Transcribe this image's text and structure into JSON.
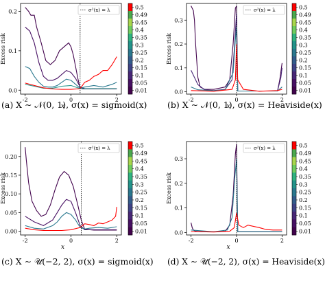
{
  "colorbar_ticks": [
    "0.5",
    "0.49",
    "0.45",
    "0.4",
    "0.35",
    "0.3",
    "0.25",
    "0.2",
    "0.15",
    "0.1",
    "0.05",
    "0.01"
  ],
  "colorbar_colors": [
    "#ff0000",
    "#4ba84e",
    "#a8d64c",
    "#6fce5f",
    "#2fb380",
    "#23948b",
    "#2a788e",
    "#335c8c",
    "#3e4386",
    "#482777",
    "#471063",
    "#42034d"
  ],
  "legend_label": "σ²(x) = λ",
  "ylabel": "Excess risk",
  "xlabel": "x",
  "chart_data": [
    {
      "type": "line",
      "caption": "(a) X ∼ 𝒩(0, 1), σ(x) = sigmoid(x)",
      "xlim": [
        -2.2,
        2.2
      ],
      "ylim": [
        -0.01,
        0.22
      ],
      "xticks": [
        "-2",
        "0",
        "2"
      ],
      "xtick_values": [
        -2,
        0,
        2
      ],
      "yticks": [
        "0.0",
        "0.1",
        "0.2"
      ],
      "ytick_values": [
        0,
        0.1,
        0.2
      ],
      "threshold_x": 0.4,
      "series": [
        {
          "lambda": "0.01",
          "color": "#42034d",
          "x": [
            -2,
            -1.85,
            -1.75,
            -1.6,
            -1.5,
            -1.3,
            -1.1,
            -0.9,
            -0.7,
            -0.5,
            -0.3,
            -0.1,
            0,
            0.1,
            0.2,
            0.3,
            0.4,
            0.5,
            0.8,
            1.2,
            1.6,
            2
          ],
          "y": [
            0.21,
            0.2,
            0.19,
            0.19,
            0.16,
            0.12,
            0.075,
            0.065,
            0.075,
            0.1,
            0.11,
            0.12,
            0.11,
            0.09,
            0.06,
            0.03,
            0.005,
            0.003,
            0.003,
            0.003,
            0.003,
            0.003
          ]
        },
        {
          "lambda": "0.05",
          "color": "#471063",
          "x": [
            -2,
            -1.8,
            -1.6,
            -1.4,
            -1.2,
            -1.0,
            -0.8,
            -0.6,
            -0.4,
            -0.2,
            0,
            0.2,
            0.4,
            0.6,
            1.0,
            1.4,
            2
          ],
          "y": [
            0.16,
            0.15,
            0.12,
            0.07,
            0.035,
            0.025,
            0.025,
            0.03,
            0.04,
            0.05,
            0.045,
            0.03,
            0.008,
            0.004,
            0.004,
            0.004,
            0.004
          ]
        },
        {
          "lambda": "0.15",
          "color": "#2a788e",
          "x": [
            -2,
            -1.8,
            -1.6,
            -1.4,
            -1.2,
            -1.0,
            -0.8,
            -0.6,
            -0.4,
            -0.2,
            0,
            0.2,
            0.4,
            0.6,
            1.0,
            1.4,
            1.8,
            2
          ],
          "y": [
            0.06,
            0.055,
            0.035,
            0.02,
            0.01,
            0.008,
            0.008,
            0.012,
            0.02,
            0.028,
            0.025,
            0.015,
            0.005,
            0.008,
            0.012,
            0.008,
            0.015,
            0.02
          ]
        },
        {
          "lambda": "0.3",
          "color": "#23948b",
          "x": [
            -2,
            -1.6,
            -1.2,
            -0.8,
            -0.4,
            0,
            0.4,
            0.8,
            1.2,
            1.6,
            2
          ],
          "y": [
            0.015,
            0.01,
            0.005,
            0.005,
            0.01,
            0.012,
            0.004,
            0.004,
            0.004,
            0.004,
            0.004
          ]
        },
        {
          "lambda": "0.5",
          "color": "#ff0000",
          "x": [
            -2,
            -1.6,
            -1.2,
            -0.8,
            -0.4,
            0,
            0.4,
            0.6,
            0.8,
            1.0,
            1.2,
            1.4,
            1.6,
            1.8,
            2
          ],
          "y": [
            0.018,
            0.012,
            0.006,
            0.003,
            0.002,
            0.002,
            0.004,
            0.02,
            0.025,
            0.035,
            0.04,
            0.05,
            0.05,
            0.065,
            0.085
          ]
        }
      ]
    },
    {
      "type": "line",
      "caption": "(b) X ∼ 𝒩(0, 1), σ(x) = Heaviside(x)",
      "xlim": [
        -2.2,
        2.2
      ],
      "ylim": [
        -0.01,
        0.37
      ],
      "xticks": [
        "-2",
        "0",
        "2"
      ],
      "xtick_values": [
        -2,
        0,
        2
      ],
      "yticks": [
        "0.0",
        "0.1",
        "0.2",
        "0.3"
      ],
      "ytick_values": [
        0,
        0.1,
        0.2,
        0.3
      ],
      "threshold_x": 0,
      "series": [
        {
          "lambda": "0.01",
          "color": "#42034d",
          "x": [
            -2,
            -1.9,
            -1.85,
            -1.8,
            -1.7,
            -1.6,
            -1.4,
            -1.0,
            -0.5,
            -0.3,
            -0.15,
            -0.05,
            0,
            0.05,
            0.2,
            1.0,
            1.8,
            1.9,
            2
          ],
          "y": [
            0.36,
            0.34,
            0.3,
            0.2,
            0.06,
            0.02,
            0.01,
            0.01,
            0.02,
            0.05,
            0.2,
            0.35,
            0.36,
            0.003,
            0.003,
            0.003,
            0.003,
            0.05,
            0.12
          ]
        },
        {
          "lambda": "0.1",
          "color": "#482777",
          "x": [
            -2,
            -1.7,
            -1.4,
            -1.0,
            -0.5,
            -0.2,
            -0.08,
            -0.02,
            0,
            0.05,
            1.0,
            1.8,
            1.95,
            2
          ],
          "y": [
            0.09,
            0.03,
            0.008,
            0.005,
            0.01,
            0.05,
            0.2,
            0.3,
            0.33,
            0.003,
            0.003,
            0.003,
            0.06,
            0.1
          ]
        },
        {
          "lambda": "0.25",
          "color": "#2a788e",
          "x": [
            -2,
            -1.7,
            -1.0,
            -0.5,
            -0.15,
            -0.05,
            0,
            0.05,
            1.0,
            1.8,
            2
          ],
          "y": [
            0.02,
            0.008,
            0.004,
            0.008,
            0.08,
            0.22,
            0.27,
            0.003,
            0.003,
            0.003,
            0.02
          ]
        },
        {
          "lambda": "0.5",
          "color": "#ff0000",
          "x": [
            -2,
            -1.0,
            -0.2,
            -0.05,
            0,
            0.05,
            0.3,
            1.0,
            1.8,
            2
          ],
          "y": [
            0.005,
            0.002,
            0.01,
            0.05,
            0.2,
            0.05,
            0.01,
            0.002,
            0.005,
            0.01
          ]
        }
      ]
    },
    {
      "type": "line",
      "caption": "(c) X ∼ 𝒰(−2, 2), σ(x) = sigmoid(x)",
      "xlim": [
        -2.2,
        2.2
      ],
      "ylim": [
        -0.01,
        0.24
      ],
      "xticks": [
        "-2",
        "0",
        "2"
      ],
      "xtick_values": [
        -2,
        0,
        2
      ],
      "yticks": [
        "0.00",
        "0.05",
        "0.10",
        "0.15",
        "0.20"
      ],
      "ytick_values": [
        0,
        0.05,
        0.1,
        0.15,
        0.2
      ],
      "threshold_x": 0.45,
      "series": [
        {
          "lambda": "0.01",
          "color": "#42034d",
          "x": [
            -2,
            -1.95,
            -1.85,
            -1.7,
            -1.5,
            -1.3,
            -1.1,
            -0.9,
            -0.7,
            -0.5,
            -0.3,
            -0.1,
            0.1,
            0.3,
            0.45,
            0.6,
            1.0,
            1.5,
            2
          ],
          "y": [
            0.225,
            0.19,
            0.13,
            0.08,
            0.055,
            0.04,
            0.045,
            0.07,
            0.11,
            0.145,
            0.16,
            0.15,
            0.12,
            0.07,
            0.03,
            0.005,
            0.003,
            0.003,
            0.003
          ]
        },
        {
          "lambda": "0.05",
          "color": "#471063",
          "x": [
            -2,
            -1.6,
            -1.2,
            -0.8,
            -0.6,
            -0.4,
            -0.2,
            0,
            0.2,
            0.4,
            0.6,
            1.0,
            2
          ],
          "y": [
            0.04,
            0.025,
            0.015,
            0.03,
            0.05,
            0.07,
            0.085,
            0.08,
            0.05,
            0.015,
            0.004,
            0.004,
            0.004
          ]
        },
        {
          "lambda": "0.15",
          "color": "#2a788e",
          "x": [
            -2,
            -1.6,
            -1.2,
            -0.8,
            -0.6,
            -0.4,
            -0.2,
            0,
            0.2,
            0.4,
            0.6,
            0.8,
            1.2,
            1.6,
            2
          ],
          "y": [
            0.015,
            0.008,
            0.006,
            0.015,
            0.025,
            0.04,
            0.05,
            0.045,
            0.03,
            0.01,
            0.006,
            0.008,
            0.01,
            0.008,
            0.012
          ]
        },
        {
          "lambda": "0.5",
          "color": "#ff0000",
          "x": [
            -2,
            -1.6,
            -1.2,
            -0.8,
            -0.4,
            0,
            0.4,
            0.6,
            0.8,
            1.0,
            1.2,
            1.4,
            1.6,
            1.8,
            1.95,
            2
          ],
          "y": [
            0.008,
            0.004,
            0.002,
            0.002,
            0.002,
            0.004,
            0.01,
            0.02,
            0.018,
            0.015,
            0.022,
            0.02,
            0.025,
            0.03,
            0.04,
            0.065
          ]
        }
      ]
    },
    {
      "type": "line",
      "caption": "(d) X ∼ 𝒰(−2, 2), σ(x) = Heaviside(x)",
      "xlim": [
        -2.2,
        2.2
      ],
      "ylim": [
        -0.01,
        0.37
      ],
      "xticks": [
        "-2",
        "0",
        "2"
      ],
      "xtick_values": [
        -2,
        0,
        2
      ],
      "yticks": [
        "0.0",
        "0.1",
        "0.2",
        "0.3"
      ],
      "ytick_values": [
        0,
        0.1,
        0.2,
        0.3
      ],
      "threshold_x": 0,
      "series": [
        {
          "lambda": "0.01",
          "color": "#42034d",
          "x": [
            -2,
            -1.95,
            -1.9,
            -1.8,
            -1.6,
            -1.0,
            -0.5,
            -0.3,
            -0.15,
            -0.05,
            0,
            0.05,
            0.2,
            1.0,
            2
          ],
          "y": [
            0.04,
            0.02,
            0.01,
            0.005,
            0.003,
            0.003,
            0.005,
            0.03,
            0.15,
            0.32,
            0.36,
            0.003,
            0.003,
            0.003,
            0.003
          ]
        },
        {
          "lambda": "0.15",
          "color": "#2a788e",
          "x": [
            -2,
            -1.0,
            -0.4,
            -0.2,
            -0.08,
            0,
            0.05,
            1.0,
            2
          ],
          "y": [
            0.01,
            0.003,
            0.01,
            0.06,
            0.22,
            0.3,
            0.003,
            0.003,
            0.003
          ]
        },
        {
          "lambda": "0.5",
          "color": "#ff0000",
          "x": [
            -2,
            -1.0,
            -0.3,
            -0.1,
            0,
            0.1,
            0.3,
            0.5,
            1.0,
            1.3,
            1.6,
            2
          ],
          "y": [
            0.004,
            0.002,
            0.005,
            0.02,
            0.08,
            0.03,
            0.02,
            0.03,
            0.02,
            0.012,
            0.01,
            0.01
          ]
        }
      ]
    }
  ]
}
